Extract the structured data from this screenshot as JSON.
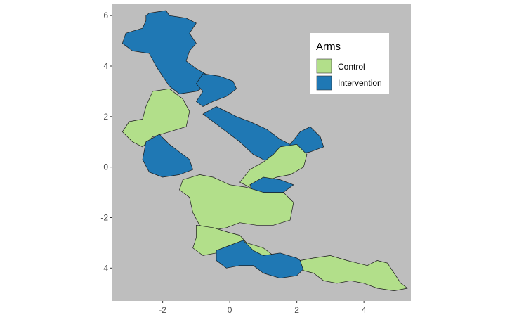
{
  "chart_data": {
    "type": "map",
    "title": "",
    "xlabel": "",
    "ylabel": "",
    "xlim": [
      -3.5,
      5.4
    ],
    "ylim": [
      -5.3,
      6.45
    ],
    "x_ticks": [
      -2,
      0,
      2,
      4
    ],
    "y_ticks": [
      -4,
      -2,
      0,
      2,
      4,
      6
    ],
    "x_tick_labels": [
      "-2",
      "0",
      "2",
      "4"
    ],
    "y_tick_labels": [
      "-4",
      "-2",
      "0",
      "2",
      "4",
      "6"
    ],
    "grid": false,
    "panel_color": "#bebebe",
    "legend": {
      "title": "Arms",
      "placement": "top-right",
      "entries": [
        {
          "label": "Control",
          "color": "#b2df8a"
        },
        {
          "label": "Intervention",
          "color": "#1f78b4"
        }
      ]
    },
    "regions": [
      {
        "arm": "Intervention",
        "points": [
          [
            -2.5,
            6.0
          ],
          [
            -2.4,
            6.1
          ],
          [
            -1.9,
            6.2
          ],
          [
            -1.8,
            6.0
          ],
          [
            -1.3,
            5.9
          ],
          [
            -1.0,
            5.7
          ],
          [
            -1.2,
            5.3
          ],
          [
            -1.0,
            4.9
          ],
          [
            -1.2,
            4.6
          ],
          [
            -1.3,
            4.2
          ],
          [
            -1.0,
            3.9
          ],
          [
            -0.6,
            3.6
          ],
          [
            -0.7,
            3.2
          ],
          [
            -1.0,
            3.0
          ],
          [
            -1.5,
            2.9
          ],
          [
            -1.8,
            3.2
          ],
          [
            -2.0,
            3.6
          ],
          [
            -2.2,
            4.0
          ],
          [
            -2.4,
            4.5
          ],
          [
            -2.9,
            4.6
          ],
          [
            -3.2,
            4.9
          ],
          [
            -3.1,
            5.3
          ],
          [
            -2.6,
            5.5
          ],
          [
            -2.5,
            5.8
          ]
        ]
      },
      {
        "arm": "Intervention",
        "points": [
          [
            -0.8,
            3.7
          ],
          [
            -0.3,
            3.6
          ],
          [
            0.1,
            3.4
          ],
          [
            0.2,
            3.1
          ],
          [
            -0.1,
            2.8
          ],
          [
            -0.5,
            2.6
          ],
          [
            -0.8,
            2.4
          ],
          [
            -1.0,
            2.6
          ],
          [
            -0.8,
            3.0
          ],
          [
            -1.0,
            3.3
          ]
        ]
      },
      {
        "arm": "Intervention",
        "points": [
          [
            -0.8,
            2.1
          ],
          [
            -0.4,
            2.4
          ],
          [
            0.2,
            2.0
          ],
          [
            0.6,
            1.8
          ],
          [
            1.1,
            1.5
          ],
          [
            1.5,
            1.1
          ],
          [
            1.8,
            0.9
          ],
          [
            2.1,
            1.4
          ],
          [
            2.4,
            1.6
          ],
          [
            2.7,
            1.2
          ],
          [
            2.8,
            0.8
          ],
          [
            2.4,
            0.6
          ],
          [
            2.0,
            0.5
          ],
          [
            1.7,
            0.3
          ],
          [
            1.3,
            0.1
          ],
          [
            0.7,
            0.5
          ],
          [
            0.3,
            1.0
          ],
          [
            -0.1,
            1.4
          ],
          [
            -0.5,
            1.8
          ]
        ]
      },
      {
        "arm": "Control",
        "points": [
          [
            -2.3,
            3.0
          ],
          [
            -1.8,
            3.1
          ],
          [
            -1.4,
            2.7
          ],
          [
            -1.2,
            2.2
          ],
          [
            -1.3,
            1.6
          ],
          [
            -1.8,
            1.4
          ],
          [
            -2.3,
            1.2
          ],
          [
            -2.6,
            0.8
          ],
          [
            -2.9,
            1.0
          ],
          [
            -3.2,
            1.4
          ],
          [
            -3.0,
            1.8
          ],
          [
            -2.6,
            1.9
          ],
          [
            -2.5,
            2.4
          ]
        ]
      },
      {
        "arm": "Intervention",
        "points": [
          [
            -2.5,
            1.0
          ],
          [
            -2.1,
            1.3
          ],
          [
            -1.8,
            0.9
          ],
          [
            -1.5,
            0.6
          ],
          [
            -1.2,
            0.3
          ],
          [
            -1.1,
            -0.1
          ],
          [
            -1.5,
            -0.3
          ],
          [
            -2.0,
            -0.4
          ],
          [
            -2.4,
            -0.2
          ],
          [
            -2.6,
            0.3
          ]
        ]
      },
      {
        "arm": "Control",
        "points": [
          [
            1.5,
            0.8
          ],
          [
            2.0,
            0.9
          ],
          [
            2.3,
            0.5
          ],
          [
            2.2,
            0.0
          ],
          [
            1.8,
            -0.3
          ],
          [
            1.4,
            -0.4
          ],
          [
            1.0,
            -0.6
          ],
          [
            0.6,
            -0.8
          ],
          [
            0.3,
            -0.6
          ],
          [
            0.6,
            -0.1
          ],
          [
            1.0,
            0.2
          ],
          [
            1.3,
            0.5
          ]
        ]
      },
      {
        "arm": "Intervention",
        "points": [
          [
            0.6,
            -0.7
          ],
          [
            1.0,
            -0.4
          ],
          [
            1.5,
            -0.5
          ],
          [
            1.9,
            -0.7
          ],
          [
            1.6,
            -1.0
          ],
          [
            1.1,
            -1.1
          ],
          [
            0.7,
            -1.0
          ]
        ]
      },
      {
        "arm": "Control",
        "points": [
          [
            -1.4,
            -0.5
          ],
          [
            -0.9,
            -0.3
          ],
          [
            -0.5,
            -0.4
          ],
          [
            0.0,
            -0.7
          ],
          [
            0.5,
            -0.8
          ],
          [
            1.0,
            -1.0
          ],
          [
            1.6,
            -1.0
          ],
          [
            1.9,
            -1.4
          ],
          [
            1.8,
            -2.1
          ],
          [
            1.3,
            -2.3
          ],
          [
            0.8,
            -2.3
          ],
          [
            0.3,
            -2.2
          ],
          [
            -0.1,
            -2.4
          ],
          [
            -0.5,
            -2.5
          ],
          [
            -0.9,
            -2.3
          ],
          [
            -1.1,
            -1.8
          ],
          [
            -1.2,
            -1.2
          ],
          [
            -1.5,
            -0.9
          ]
        ]
      },
      {
        "arm": "Control",
        "points": [
          [
            -1.0,
            -2.3
          ],
          [
            -0.5,
            -2.4
          ],
          [
            0.0,
            -2.6
          ],
          [
            0.3,
            -2.7
          ],
          [
            0.5,
            -3.0
          ],
          [
            1.0,
            -3.2
          ],
          [
            1.3,
            -3.5
          ],
          [
            0.9,
            -3.6
          ],
          [
            0.4,
            -3.4
          ],
          [
            0.0,
            -3.2
          ],
          [
            -0.4,
            -3.4
          ],
          [
            -0.8,
            -3.5
          ],
          [
            -1.1,
            -3.2
          ],
          [
            -1.0,
            -2.8
          ]
        ]
      },
      {
        "arm": "Intervention",
        "points": [
          [
            -0.4,
            -3.3
          ],
          [
            0.0,
            -3.1
          ],
          [
            0.4,
            -2.9
          ],
          [
            0.7,
            -3.3
          ],
          [
            1.0,
            -3.5
          ],
          [
            1.5,
            -3.4
          ],
          [
            2.0,
            -3.6
          ],
          [
            2.3,
            -3.9
          ],
          [
            2.0,
            -4.3
          ],
          [
            1.5,
            -4.4
          ],
          [
            1.0,
            -4.2
          ],
          [
            0.7,
            -3.9
          ],
          [
            0.3,
            -3.9
          ],
          [
            -0.1,
            -4.0
          ],
          [
            -0.4,
            -3.7
          ]
        ]
      },
      {
        "arm": "Control",
        "points": [
          [
            2.1,
            -3.7
          ],
          [
            2.5,
            -3.6
          ],
          [
            3.0,
            -3.5
          ],
          [
            3.5,
            -3.7
          ],
          [
            4.1,
            -3.9
          ],
          [
            4.4,
            -3.7
          ],
          [
            4.7,
            -3.8
          ],
          [
            4.9,
            -4.2
          ],
          [
            5.1,
            -4.6
          ],
          [
            5.3,
            -4.8
          ],
          [
            4.9,
            -4.9
          ],
          [
            4.4,
            -4.8
          ],
          [
            4.0,
            -4.6
          ],
          [
            3.6,
            -4.5
          ],
          [
            3.2,
            -4.6
          ],
          [
            2.8,
            -4.5
          ],
          [
            2.5,
            -4.2
          ],
          [
            2.2,
            -4.1
          ]
        ]
      }
    ]
  }
}
